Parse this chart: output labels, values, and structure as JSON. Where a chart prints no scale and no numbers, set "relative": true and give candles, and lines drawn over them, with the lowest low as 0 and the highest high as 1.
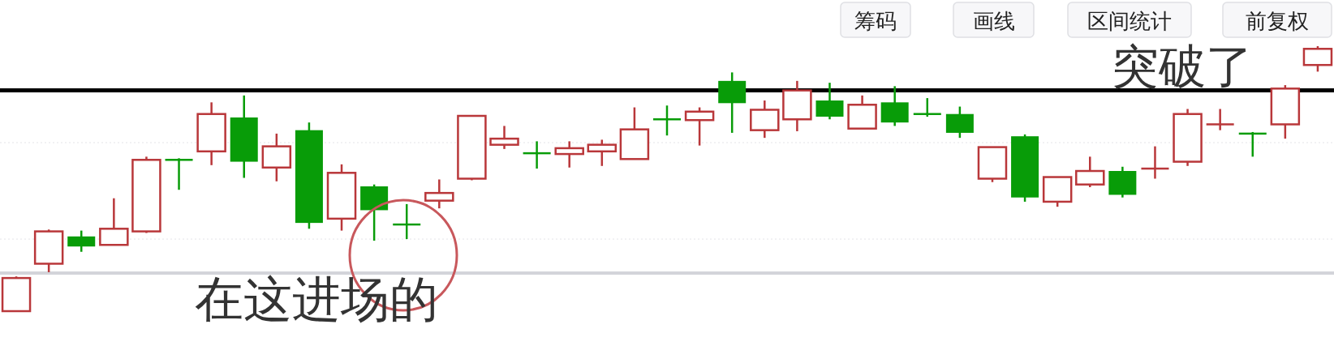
{
  "chart_data": {
    "type": "candlestick",
    "relative": true,
    "categories": [
      null,
      null,
      null,
      null,
      null,
      null,
      null,
      null,
      null,
      null,
      null,
      null,
      null,
      null,
      null,
      null,
      null,
      null,
      null,
      null,
      null,
      null,
      null,
      null,
      null,
      null,
      null,
      null,
      null,
      null,
      null,
      null,
      null,
      null,
      null,
      null,
      null,
      null,
      null,
      null,
      null
    ],
    "ohlc": [
      [
        0,
        0.131,
        0,
        0.125
      ],
      [
        0.179,
        0.308,
        0.147,
        0.301
      ],
      [
        0.282,
        0.304,
        0.224,
        0.244
      ],
      [
        0.25,
        0.426,
        0.25,
        0.311
      ],
      [
        0.301,
        0.583,
        0.295,
        0.571
      ],
      [
        0.571,
        0.577,
        0.458,
        0.567
      ],
      [
        0.603,
        0.788,
        0.551,
        0.744
      ],
      [
        0.731,
        0.814,
        0.503,
        0.564
      ],
      [
        0.542,
        0.67,
        0.49,
        0.622
      ],
      [
        0.683,
        0.712,
        0.311,
        0.333
      ],
      [
        0.349,
        0.554,
        0.304,
        0.522
      ],
      [
        0.471,
        0.478,
        0.266,
        0.381
      ],
      [
        0.327,
        0.404,
        0.272,
        0.324
      ],
      [
        0.417,
        0.497,
        0.388,
        0.446
      ],
      [
        0.5,
        0.737,
        0.494,
        0.737
      ],
      [
        0.628,
        0.699,
        0.612,
        0.651
      ],
      [
        0.596,
        0.641,
        0.538,
        0.593
      ],
      [
        0.593,
        0.641,
        0.542,
        0.615
      ],
      [
        0.603,
        0.647,
        0.548,
        0.628
      ],
      [
        0.574,
        0.769,
        0.574,
        0.686
      ],
      [
        0.724,
        0.776,
        0.663,
        0.721
      ],
      [
        0.721,
        0.769,
        0.625,
        0.753
      ],
      [
        0.869,
        0.901,
        0.673,
        0.785
      ],
      [
        0.683,
        0.795,
        0.654,
        0.76
      ],
      [
        0.724,
        0.869,
        0.679,
        0.833
      ],
      [
        0.795,
        0.862,
        0.724,
        0.734
      ],
      [
        0.689,
        0.814,
        0.689,
        0.779
      ],
      [
        0.788,
        0.849,
        0.699,
        0.712
      ],
      [
        0.744,
        0.804,
        0.734,
        0.74
      ],
      [
        0.744,
        0.772,
        0.654,
        0.673
      ],
      [
        0.5,
        0.619,
        0.487,
        0.619
      ],
      [
        0.66,
        0.667,
        0.413,
        0.429
      ],
      [
        0.413,
        0.506,
        0.394,
        0.506
      ],
      [
        0.478,
        0.583,
        0.468,
        0.529
      ],
      [
        0.529,
        0.545,
        0.429,
        0.439
      ],
      [
        0.535,
        0.622,
        0.5,
        0.538
      ],
      [
        0.564,
        0.763,
        0.548,
        0.744
      ],
      [
        0.702,
        0.763,
        0.683,
        0.705
      ],
      [
        0.67,
        0.676,
        0.583,
        0.663
      ],
      [
        0.705,
        0.853,
        0.651,
        0.84
      ],
      [
        0.929,
        1,
        0.904,
        0.99
      ]
    ],
    "ref_lines": [
      {
        "axis": "y",
        "value": 0.833,
        "color": "#000000"
      },
      {
        "axis": "y",
        "value": 0.144,
        "color": "#d3d4da"
      },
      {
        "axis": "y",
        "value": 0.636,
        "color": "#e4e4e8",
        "line_style": "dotted"
      },
      {
        "axis": "y",
        "value": 0.272,
        "color": "#e4e4e8",
        "line_style": "dotted"
      }
    ],
    "annotations": [
      "筹码",
      "画线",
      "区间统计",
      "前复权",
      "在这进场的",
      "突破了"
    ]
  }
}
